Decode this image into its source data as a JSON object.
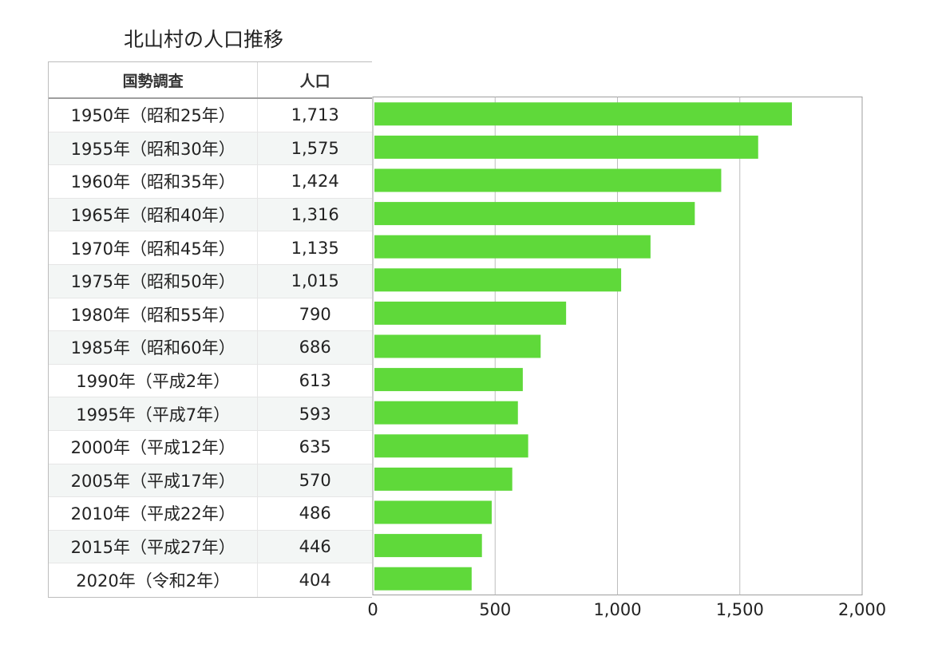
{
  "title": "北山村の人口推移",
  "table": {
    "headers": [
      "国勢調査",
      "人口"
    ],
    "rows": [
      [
        "1950年（昭和25年）",
        "1,713"
      ],
      [
        "1955年（昭和30年）",
        "1,575"
      ],
      [
        "1960年（昭和35年）",
        "1,424"
      ],
      [
        "1965年（昭和40年）",
        "1,316"
      ],
      [
        "1970年（昭和45年）",
        "1,135"
      ],
      [
        "1975年（昭和50年）",
        "1,015"
      ],
      [
        "1980年（昭和55年）",
        "790"
      ],
      [
        "1985年（昭和60年）",
        "686"
      ],
      [
        "1990年（平成2年）",
        "613"
      ],
      [
        "1995年（平成7年）",
        "593"
      ],
      [
        "2000年（平成12年）",
        "635"
      ],
      [
        "2005年（平成17年）",
        "570"
      ],
      [
        "2010年（平成22年）",
        "486"
      ],
      [
        "2015年（平成27年）",
        "446"
      ],
      [
        "2020年（令和2年）",
        "404"
      ]
    ]
  },
  "chart_data": {
    "type": "bar",
    "orientation": "horizontal",
    "title": "北山村の人口推移",
    "categories": [
      "1950年（昭和25年）",
      "1955年（昭和30年）",
      "1960年（昭和35年）",
      "1965年（昭和40年）",
      "1970年（昭和45年）",
      "1975年（昭和50年）",
      "1980年（昭和55年）",
      "1985年（昭和60年）",
      "1990年（平成2年）",
      "1995年（平成7年）",
      "2000年（平成12年）",
      "2005年（平成17年）",
      "2010年（平成22年）",
      "2015年（平成27年）",
      "2020年（令和2年）"
    ],
    "values": [
      1713,
      1575,
      1424,
      1316,
      1135,
      1015,
      790,
      686,
      613,
      593,
      635,
      570,
      486,
      446,
      404
    ],
    "xlim": [
      0,
      2000
    ],
    "xticks": [
      0,
      500,
      1000,
      1500,
      2000
    ],
    "xtick_labels": [
      "0",
      "500",
      "1,000",
      "1,500",
      "2,000"
    ],
    "grid": true,
    "bar_color": "#5fd93a"
  }
}
